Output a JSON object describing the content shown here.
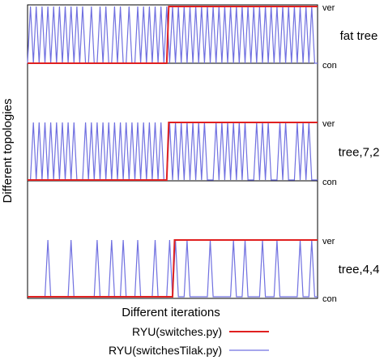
{
  "chart_data": {
    "type": "line",
    "ylabel": "Different topologies",
    "xlabel": "Different iterations",
    "legend": {
      "placement": "bottom-center",
      "entries": [
        {
          "name": "RYU(switches.py)",
          "color": "#e02020"
        },
        {
          "name": "RYU(switchesTilak.py)",
          "color": "#7070e0"
        }
      ]
    },
    "y_categories": [
      "con",
      "ver"
    ],
    "x_range": [
      0,
      100
    ],
    "panels": [
      {
        "name": "fat tree",
        "ryu_step_at": 48,
        "tilak_up_iterations": [
          1,
          3,
          5,
          7,
          9,
          11,
          13,
          15,
          17,
          19,
          22,
          25,
          27,
          30,
          32,
          35,
          38,
          40,
          42,
          44,
          46,
          48,
          50,
          52,
          54,
          56,
          58,
          60,
          62,
          64,
          66,
          68,
          70,
          72,
          74,
          76,
          78,
          80,
          82,
          84,
          86,
          88,
          90,
          92,
          94,
          96,
          98
        ]
      },
      {
        "name": "tree,7,2",
        "ryu_step_at": 48,
        "tilak_up_iterations": [
          2,
          4,
          6,
          8,
          10,
          12,
          14,
          16,
          20,
          22,
          24,
          26,
          28,
          30,
          32,
          34,
          36,
          38,
          40,
          42,
          44,
          46,
          49,
          51,
          53,
          55,
          57,
          59,
          61,
          65,
          67,
          69,
          71,
          73,
          75,
          79,
          81,
          83,
          87,
          89,
          93,
          95,
          97
        ]
      },
      {
        "name": "tree,4,4",
        "ryu_step_at": 50,
        "tilak_up_iterations": [
          7,
          15,
          24,
          29,
          33,
          38,
          44,
          49,
          51,
          55,
          63,
          71,
          75,
          81,
          86,
          94,
          98
        ]
      }
    ]
  }
}
